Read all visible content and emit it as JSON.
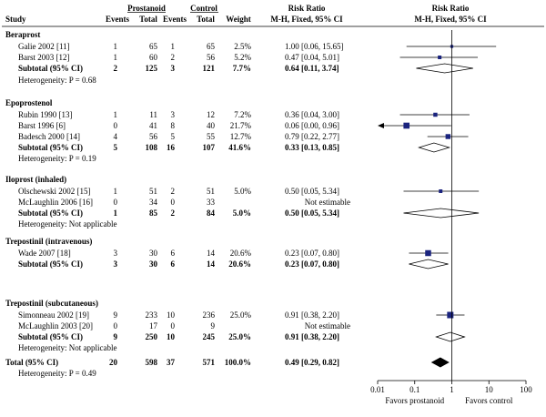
{
  "chart_data": {
    "type": "forest",
    "headers": {
      "study": "Study",
      "group1": "Prostanoid",
      "group2": "Control",
      "events": "Events",
      "total": "Total",
      "weight": "Weight",
      "rr_title": "Risk Ratio",
      "rr_method": "M-H, Fixed, 95% CI",
      "plot_title": "Risk Ratio",
      "plot_method": "M-H, Fixed, 95% CI"
    },
    "subgroups": [
      {
        "title": "Beraprost",
        "studies": [
          {
            "name": "Galie 2002 [11]",
            "e1": "1",
            "t1": "65",
            "e2": "1",
            "t2": "65",
            "weight": "2.5%",
            "ci_text": "1.00 [0.06, 15.65]",
            "rr": 1.0,
            "lo": 0.06,
            "hi": 15.65,
            "estimable": true
          },
          {
            "name": "Barst 2003 [12]",
            "e1": "1",
            "t1": "60",
            "e2": "2",
            "t2": "56",
            "weight": "5.2%",
            "ci_text": "0.47 [0.04, 5.01]",
            "rr": 0.47,
            "lo": 0.04,
            "hi": 5.01,
            "estimable": true
          }
        ],
        "subtotal": {
          "label": "Subtotal (95% CI)",
          "t1": "125",
          "e1": "2",
          "t2": "121",
          "e2": "3",
          "weight": "7.7%",
          "ci_text": "0.64 [0.11, 3.74]",
          "rr": 0.64,
          "lo": 0.11,
          "hi": 3.74
        },
        "heterogeneity": "Heterogeneity: P = 0.68"
      },
      {
        "title": "Epoprostenol",
        "studies": [
          {
            "name": "Rubin 1990 [13]",
            "e1": "1",
            "t1": "11",
            "e2": "3",
            "t2": "12",
            "weight": "7.2%",
            "ci_text": "0.36 [0.04, 3.00]",
            "rr": 0.36,
            "lo": 0.04,
            "hi": 3.0,
            "estimable": true
          },
          {
            "name": "Barst 1996 [6]",
            "e1": "0",
            "t1": "41",
            "e2": "8",
            "t2": "40",
            "weight": "21.7%",
            "ci_text": "0.06 [0.00, 0.96]",
            "rr": 0.06,
            "lo": 0.0035,
            "hi": 0.96,
            "estimable": true
          },
          {
            "name": "Badesch 2000 [14]",
            "e1": "4",
            "t1": "56",
            "e2": "5",
            "t2": "55",
            "weight": "12.7%",
            "ci_text": "0.79 [0.22, 2.77]",
            "rr": 0.79,
            "lo": 0.22,
            "hi": 2.77,
            "estimable": true
          }
        ],
        "subtotal": {
          "label": "Subtotal (95% CI)",
          "t1": "108",
          "e1": "5",
          "t2": "107",
          "e2": "16",
          "weight": "41.6%",
          "ci_text": "0.33 [0.13, 0.85]",
          "rr": 0.33,
          "lo": 0.13,
          "hi": 0.85
        },
        "heterogeneity": "Heterogeneity: P = 0.19"
      },
      {
        "title": "Iloprost (inhaled)",
        "studies": [
          {
            "name": "Olschewski 2002 [15]",
            "e1": "1",
            "t1": "51",
            "e2": "2",
            "t2": "51",
            "weight": "5.0%",
            "ci_text": "0.50 [0.05, 5.34]",
            "rr": 0.5,
            "lo": 0.05,
            "hi": 5.34,
            "estimable": true
          },
          {
            "name": "McLaughlin 2006 [16]",
            "e1": "0",
            "t1": "34",
            "e2": "0",
            "t2": "33",
            "weight": "",
            "ci_text": "Not estimable",
            "estimable": false
          }
        ],
        "subtotal": {
          "label": "Subtotal (95% CI)",
          "t1": "85",
          "e1": "1",
          "t2": "84",
          "e2": "2",
          "weight": "5.0%",
          "ci_text": "0.50 [0.05, 5.34]",
          "rr": 0.5,
          "lo": 0.05,
          "hi": 5.34
        },
        "heterogeneity": "Heterogeneity: Not applicable"
      },
      {
        "title": "Trepostinil (intravenous)",
        "studies": [
          {
            "name": "Wade 2007 [18]",
            "e1": "3",
            "t1": "30",
            "e2": "6",
            "t2": "14",
            "weight": "20.6%",
            "ci_text": "0.23 [0.07, 0.80]",
            "rr": 0.23,
            "lo": 0.07,
            "hi": 0.8,
            "estimable": true
          }
        ],
        "subtotal": {
          "label": "Subtotal (95% CI)",
          "t1": "30",
          "e1": "3",
          "t2": "14",
          "e2": "6",
          "weight": "20.6%",
          "ci_text": "0.23 [0.07, 0.80]",
          "rr": 0.23,
          "lo": 0.07,
          "hi": 0.8
        },
        "heterogeneity": ""
      },
      {
        "title": "Trepostinil (subcutaneous)",
        "studies": [
          {
            "name": "Simonneau 2002 [19]",
            "e1": "9",
            "t1": "233",
            "e2": "10",
            "t2": "236",
            "weight": "25.0%",
            "ci_text": "0.91 [0.38, 2.20]",
            "rr": 0.91,
            "lo": 0.38,
            "hi": 2.2,
            "estimable": true
          },
          {
            "name": "McLaughlin 2003 [20]",
            "e1": "0",
            "t1": "17",
            "e2": "0",
            "t2": "9",
            "weight": "",
            "ci_text": "Not estimable",
            "estimable": false
          }
        ],
        "subtotal": {
          "label": "Subtotal (95% CI)",
          "t1": "250",
          "e1": "9",
          "t2": "245",
          "e2": "10",
          "weight": "25.0%",
          "ci_text": "0.91 [0.38, 2.20]",
          "rr": 0.91,
          "lo": 0.38,
          "hi": 2.2
        },
        "heterogeneity": "Heterogeneity: Not applicable"
      }
    ],
    "total": {
      "label": "Total (95% CI)",
      "e1": "20",
      "t1": "598",
      "e2": "37",
      "t2": "571",
      "weight": "100.0%",
      "ci_text": "0.49 [0.29, 0.82]",
      "rr": 0.49,
      "lo": 0.29,
      "hi": 0.82
    },
    "total_heterogeneity": "Heterogeneity: P = 0.49",
    "x_axis": {
      "scale": "log",
      "range": [
        0.01,
        100
      ],
      "ticks": [
        0.01,
        0.1,
        1,
        10,
        100
      ],
      "tick_labels": [
        "0.01",
        "0.1",
        "1",
        "10",
        "100"
      ],
      "left_label": "Favors prostanoid",
      "right_label": "Favors control"
    },
    "colors": {
      "marker": "#1a237e",
      "line": "#000000",
      "text": "#000000"
    }
  }
}
